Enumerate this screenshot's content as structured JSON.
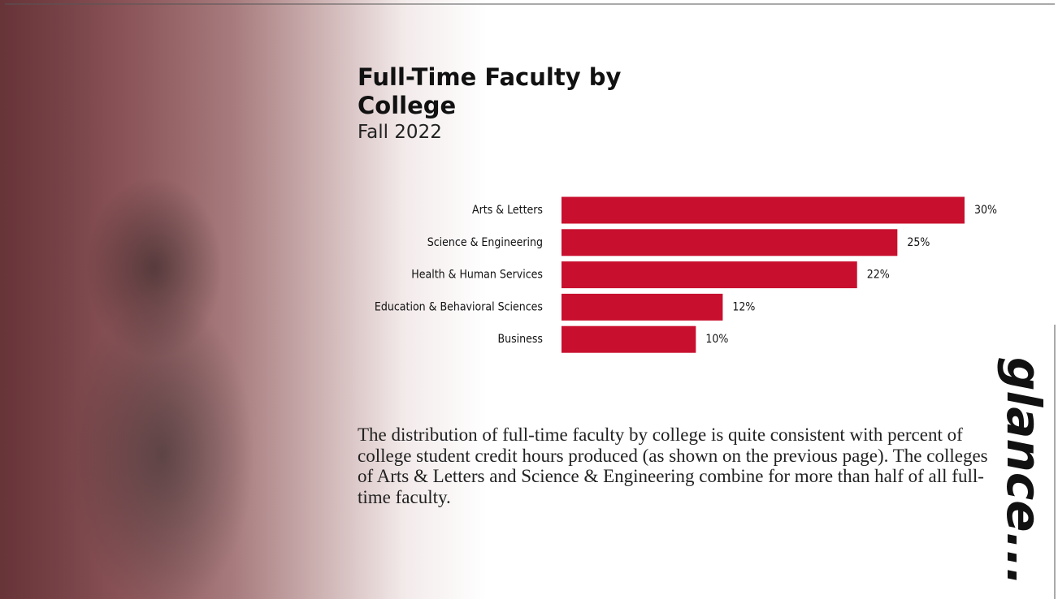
{
  "chart_data": {
    "type": "bar",
    "orientation": "horizontal",
    "title": "Full-Time Faculty by College",
    "subtitle": "Fall 2022",
    "categories": [
      "Arts & Letters",
      "Science & Engineering",
      "Health & Human Services",
      "Education & Behavioral Sciences",
      "Business"
    ],
    "values": [
      30,
      25,
      22,
      12,
      10
    ],
    "value_labels": [
      "30%",
      "25%",
      "22%",
      "12%",
      "10%"
    ],
    "color": "#c8102e",
    "note": "The distribution of full-time faculty by college is quite consistent with percent of college student credit hours produced (as shown on the previous page).  The colleges of Arts & Letters and Science & Engineering combine for more than half of all full-time faculty.",
    "side_text": "glance..."
  }
}
